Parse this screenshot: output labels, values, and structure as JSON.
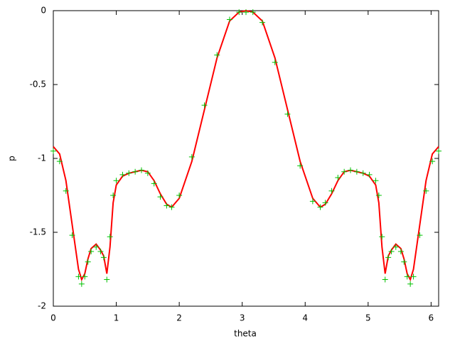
{
  "chart_data": {
    "type": "line",
    "xlabel": "theta",
    "ylabel": "p",
    "xlim": [
      0,
      6.12
    ],
    "ylim": [
      -2,
      0
    ],
    "xticks": [
      0,
      1,
      2,
      3,
      4,
      5,
      6
    ],
    "yticks": [
      0,
      -0.5,
      -1,
      -1.5,
      -2
    ],
    "series": [
      {
        "color": "#ff0000",
        "style": "line",
        "x": [
          0,
          0.1,
          0.2,
          0.3,
          0.4,
          0.45,
          0.5,
          0.55,
          0.6,
          0.68,
          0.75,
          0.8,
          0.85,
          0.9,
          0.95,
          1.0,
          1.1,
          1.2,
          1.3,
          1.4,
          1.5,
          1.6,
          1.7,
          1.8,
          1.88,
          2.0,
          2.2,
          2.4,
          2.6,
          2.8,
          2.95,
          3.06,
          3.17,
          3.32,
          3.52,
          3.72,
          3.92,
          4.12,
          4.24,
          4.32,
          4.42,
          4.52,
          4.62,
          4.72,
          4.82,
          4.92,
          5.02,
          5.12,
          5.17,
          5.22,
          5.27,
          5.32,
          5.37,
          5.44,
          5.52,
          5.57,
          5.62,
          5.67,
          5.72,
          5.82,
          5.92,
          6.02,
          6.12
        ],
        "values": [
          -0.92,
          -0.97,
          -1.15,
          -1.45,
          -1.75,
          -1.82,
          -1.78,
          -1.68,
          -1.61,
          -1.58,
          -1.62,
          -1.66,
          -1.78,
          -1.6,
          -1.3,
          -1.18,
          -1.12,
          -1.1,
          -1.09,
          -1.08,
          -1.09,
          -1.15,
          -1.24,
          -1.31,
          -1.33,
          -1.27,
          -1.02,
          -0.67,
          -0.32,
          -0.07,
          -0.01,
          0,
          -0.01,
          -0.07,
          -0.32,
          -0.67,
          -1.02,
          -1.27,
          -1.33,
          -1.31,
          -1.24,
          -1.15,
          -1.09,
          -1.08,
          -1.09,
          -1.1,
          -1.12,
          -1.18,
          -1.3,
          -1.6,
          -1.78,
          -1.66,
          -1.62,
          -1.58,
          -1.61,
          -1.68,
          -1.78,
          -1.82,
          -1.75,
          -1.45,
          -1.15,
          -0.97,
          -0.92
        ]
      },
      {
        "color": "#00c000",
        "style": "points",
        "x": [
          0,
          0.1,
          0.2,
          0.3,
          0.4,
          0.45,
          0.5,
          0.55,
          0.6,
          0.68,
          0.75,
          0.8,
          0.85,
          0.9,
          0.95,
          1.0,
          1.1,
          1.2,
          1.3,
          1.4,
          1.5,
          1.6,
          1.7,
          1.8,
          1.88,
          2.0,
          2.2,
          2.4,
          2.6,
          2.8,
          2.95,
          3.06,
          3.17,
          3.32,
          3.52,
          3.72,
          3.92,
          4.12,
          4.24,
          4.32,
          4.42,
          4.52,
          4.62,
          4.72,
          4.82,
          4.92,
          5.02,
          5.12,
          5.17,
          5.22,
          5.27,
          5.32,
          5.37,
          5.44,
          5.52,
          5.57,
          5.62,
          5.67,
          5.72,
          5.82,
          5.92,
          6.02,
          6.12
        ],
        "values": [
          -0.95,
          -1.02,
          -1.22,
          -1.52,
          -1.8,
          -1.85,
          -1.8,
          -1.7,
          -1.63,
          -1.6,
          -1.63,
          -1.67,
          -1.82,
          -1.53,
          -1.25,
          -1.15,
          -1.11,
          -1.1,
          -1.09,
          -1.08,
          -1.1,
          -1.17,
          -1.26,
          -1.32,
          -1.33,
          -1.25,
          -0.99,
          -0.64,
          -0.3,
          -0.06,
          -0.01,
          -0.01,
          -0.01,
          -0.08,
          -0.35,
          -0.7,
          -1.05,
          -1.29,
          -1.33,
          -1.3,
          -1.22,
          -1.13,
          -1.09,
          -1.08,
          -1.09,
          -1.1,
          -1.11,
          -1.15,
          -1.25,
          -1.53,
          -1.82,
          -1.67,
          -1.63,
          -1.6,
          -1.63,
          -1.7,
          -1.8,
          -1.85,
          -1.8,
          -1.52,
          -1.22,
          -1.02,
          -0.95
        ]
      }
    ]
  }
}
